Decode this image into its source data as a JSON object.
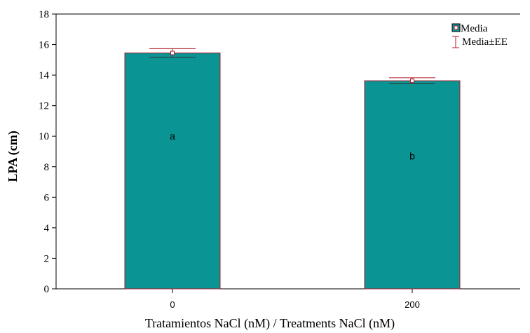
{
  "chart_data": {
    "type": "bar",
    "categories": [
      "0",
      "200"
    ],
    "values": [
      15.45,
      13.63
    ],
    "errors": [
      0.28,
      0.2
    ],
    "group_letters": [
      "a",
      "b"
    ],
    "letter_values": [
      10.0,
      8.7
    ],
    "xlabel": "Tratamientos NaCl (nM) / Treatments NaCl (nM)",
    "ylabel": "LPA (cm)",
    "ylim": [
      0,
      18
    ],
    "yticks": [
      "0",
      "2",
      "4",
      "6",
      "8",
      "10",
      "12",
      "14",
      "16",
      "18"
    ],
    "grid": false,
    "legend": {
      "placement": "top-right",
      "entries": [
        "Media",
        "Media±EE"
      ]
    },
    "colors": {
      "bar_fill": "#0b9494",
      "bar_edge": "#b01a28",
      "error_bar": "#b01a28",
      "mean_marker": "#b01a28",
      "axis": "#000000"
    }
  }
}
